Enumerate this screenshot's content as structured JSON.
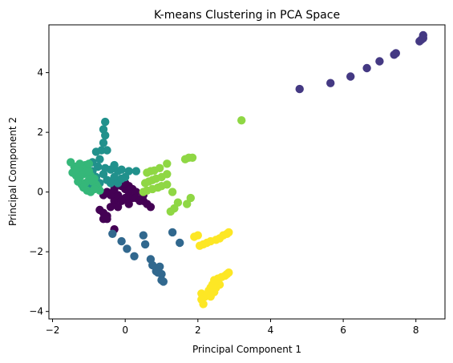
{
  "chart_data": {
    "type": "scatter",
    "title": "K-means Clustering in PCA Space",
    "xlabel": "Principal Component 1",
    "ylabel": "Principal Component 2",
    "xlim": [
      -2.1,
      8.8
    ],
    "ylim": [
      -4.25,
      5.6
    ],
    "xticks": [
      -2,
      0,
      2,
      4,
      6,
      8
    ],
    "yticks": [
      -4,
      -2,
      0,
      2,
      4
    ],
    "grid": false,
    "legend": "none",
    "clusters": [
      {
        "color": "#440154",
        "points": [
          [
            -0.7,
            -0.6
          ],
          [
            -0.6,
            -0.7
          ],
          [
            -0.5,
            -0.8
          ],
          [
            -0.6,
            -0.9
          ],
          [
            -0.4,
            -0.5
          ],
          [
            -0.3,
            -0.3
          ],
          [
            -0.2,
            -0.1
          ],
          [
            -0.4,
            -0.1
          ],
          [
            -0.5,
            0.0
          ],
          [
            -0.6,
            -0.1
          ],
          [
            -0.3,
            0.1
          ],
          [
            -0.1,
            0.2
          ],
          [
            0.0,
            0.1
          ],
          [
            0.1,
            0.0
          ],
          [
            0.2,
            0.1
          ],
          [
            0.3,
            0.0
          ],
          [
            0.2,
            -0.2
          ],
          [
            0.0,
            -0.2
          ],
          [
            -0.1,
            -0.3
          ],
          [
            0.3,
            -0.2
          ],
          [
            0.4,
            -0.3
          ],
          [
            0.5,
            -0.3
          ],
          [
            0.6,
            -0.4
          ],
          [
            0.7,
            -0.5
          ],
          [
            0.5,
            -0.1
          ],
          [
            0.1,
            0.2
          ],
          [
            -0.2,
            0.3
          ],
          [
            0.0,
            0.3
          ],
          [
            -0.3,
            -1.25
          ],
          [
            -0.5,
            -0.9
          ],
          [
            0.1,
            -0.4
          ],
          [
            -0.2,
            -0.5
          ]
        ]
      },
      {
        "color": "#443983",
        "points": [
          [
            4.8,
            3.45
          ],
          [
            5.65,
            3.65
          ],
          [
            6.2,
            3.87
          ],
          [
            6.65,
            4.15
          ],
          [
            7.0,
            4.38
          ],
          [
            7.4,
            4.6
          ],
          [
            7.45,
            4.65
          ],
          [
            8.1,
            5.05
          ],
          [
            8.15,
            5.1
          ],
          [
            8.2,
            5.15
          ],
          [
            8.2,
            5.25
          ]
        ]
      },
      {
        "color": "#31688e",
        "points": [
          [
            -0.35,
            -1.4
          ],
          [
            -0.1,
            -1.65
          ],
          [
            0.05,
            -1.9
          ],
          [
            0.25,
            -2.15
          ],
          [
            0.5,
            -1.45
          ],
          [
            0.55,
            -1.75
          ],
          [
            0.7,
            -2.25
          ],
          [
            0.75,
            -2.45
          ],
          [
            0.85,
            -2.65
          ],
          [
            0.9,
            -2.7
          ],
          [
            0.95,
            -2.5
          ],
          [
            1.0,
            -2.75
          ],
          [
            1.0,
            -2.95
          ],
          [
            1.05,
            -3.0
          ],
          [
            1.3,
            -1.35
          ],
          [
            1.5,
            -1.7
          ]
        ]
      },
      {
        "color": "#21918c",
        "points": [
          [
            -0.55,
            2.35
          ],
          [
            -0.6,
            2.1
          ],
          [
            -0.55,
            1.9
          ],
          [
            -0.6,
            1.65
          ],
          [
            -0.65,
            1.4
          ],
          [
            -0.8,
            1.35
          ],
          [
            -0.5,
            1.4
          ],
          [
            -0.7,
            1.1
          ],
          [
            -0.9,
            1.0
          ],
          [
            -0.75,
            0.85
          ],
          [
            -0.55,
            0.8
          ],
          [
            -0.4,
            0.75
          ],
          [
            -0.2,
            0.7
          ],
          [
            -0.1,
            0.75
          ],
          [
            0.1,
            0.7
          ],
          [
            0.3,
            0.7
          ],
          [
            -0.3,
            0.5
          ],
          [
            -0.5,
            0.4
          ],
          [
            -0.2,
            0.3
          ],
          [
            0.0,
            0.5
          ],
          [
            -0.8,
            0.5
          ],
          [
            -0.6,
            0.6
          ],
          [
            -0.4,
            0.3
          ],
          [
            -0.1,
            0.45
          ],
          [
            -0.7,
            0.3
          ],
          [
            -0.9,
            0.7
          ],
          [
            -0.3,
            0.9
          ],
          [
            -1.0,
            0.2
          ]
        ]
      },
      {
        "color": "#35b779",
        "points": [
          [
            -1.5,
            1.0
          ],
          [
            -1.4,
            0.85
          ],
          [
            -1.3,
            0.75
          ],
          [
            -1.2,
            0.8
          ],
          [
            -1.1,
            0.9
          ],
          [
            -1.0,
            0.95
          ],
          [
            -1.45,
            0.65
          ],
          [
            -1.35,
            0.55
          ],
          [
            -1.25,
            0.5
          ],
          [
            -1.15,
            0.6
          ],
          [
            -1.05,
            0.7
          ],
          [
            -0.95,
            0.55
          ],
          [
            -0.85,
            0.45
          ],
          [
            -1.3,
            0.35
          ],
          [
            -1.2,
            0.25
          ],
          [
            -1.1,
            0.3
          ],
          [
            -1.0,
            0.4
          ],
          [
            -0.9,
            0.35
          ],
          [
            -0.8,
            0.25
          ],
          [
            -0.75,
            0.15
          ],
          [
            -0.7,
            0.05
          ],
          [
            -1.15,
            0.15
          ],
          [
            -1.05,
            0.05
          ],
          [
            -0.95,
            0.0
          ],
          [
            -0.85,
            0.1
          ],
          [
            -1.35,
            0.75
          ],
          [
            -1.25,
            0.95
          ],
          [
            -1.0,
            0.7
          ]
        ]
      },
      {
        "color": "#8fd744",
        "points": [
          [
            3.2,
            2.4
          ],
          [
            1.65,
            1.1
          ],
          [
            1.75,
            1.15
          ],
          [
            1.85,
            1.15
          ],
          [
            0.6,
            0.65
          ],
          [
            0.7,
            0.7
          ],
          [
            0.8,
            0.72
          ],
          [
            0.95,
            0.8
          ],
          [
            1.15,
            0.95
          ],
          [
            0.55,
            0.3
          ],
          [
            0.65,
            0.35
          ],
          [
            0.75,
            0.4
          ],
          [
            0.85,
            0.45
          ],
          [
            1.0,
            0.5
          ],
          [
            1.15,
            0.6
          ],
          [
            0.5,
            0.0
          ],
          [
            0.6,
            0.05
          ],
          [
            0.75,
            0.1
          ],
          [
            0.9,
            0.15
          ],
          [
            1.0,
            0.2
          ],
          [
            1.15,
            0.25
          ],
          [
            1.3,
            0.0
          ],
          [
            1.45,
            -0.35
          ],
          [
            1.35,
            -0.55
          ],
          [
            1.25,
            -0.65
          ],
          [
            1.7,
            -0.4
          ],
          [
            1.8,
            -0.2
          ]
        ]
      },
      {
        "color": "#fde725",
        "points": [
          [
            1.9,
            -1.5
          ],
          [
            2.0,
            -1.45
          ],
          [
            2.05,
            -1.8
          ],
          [
            2.15,
            -1.75
          ],
          [
            2.25,
            -1.7
          ],
          [
            2.35,
            -1.65
          ],
          [
            2.5,
            -1.6
          ],
          [
            2.6,
            -1.55
          ],
          [
            2.7,
            -1.45
          ],
          [
            2.8,
            -1.4
          ],
          [
            2.85,
            -1.35
          ],
          [
            2.1,
            -3.4
          ],
          [
            2.1,
            -3.6
          ],
          [
            2.15,
            -3.75
          ],
          [
            2.2,
            -3.5
          ],
          [
            2.25,
            -3.45
          ],
          [
            2.3,
            -3.3
          ],
          [
            2.35,
            -3.2
          ],
          [
            2.4,
            -3.1
          ],
          [
            2.45,
            -2.95
          ],
          [
            2.55,
            -2.9
          ],
          [
            2.6,
            -3.1
          ],
          [
            2.65,
            -2.85
          ],
          [
            2.75,
            -2.8
          ],
          [
            2.8,
            -2.75
          ],
          [
            2.85,
            -2.7
          ],
          [
            2.5,
            -3.2
          ],
          [
            2.45,
            -3.35
          ],
          [
            2.35,
            -3.5
          ]
        ]
      }
    ]
  }
}
